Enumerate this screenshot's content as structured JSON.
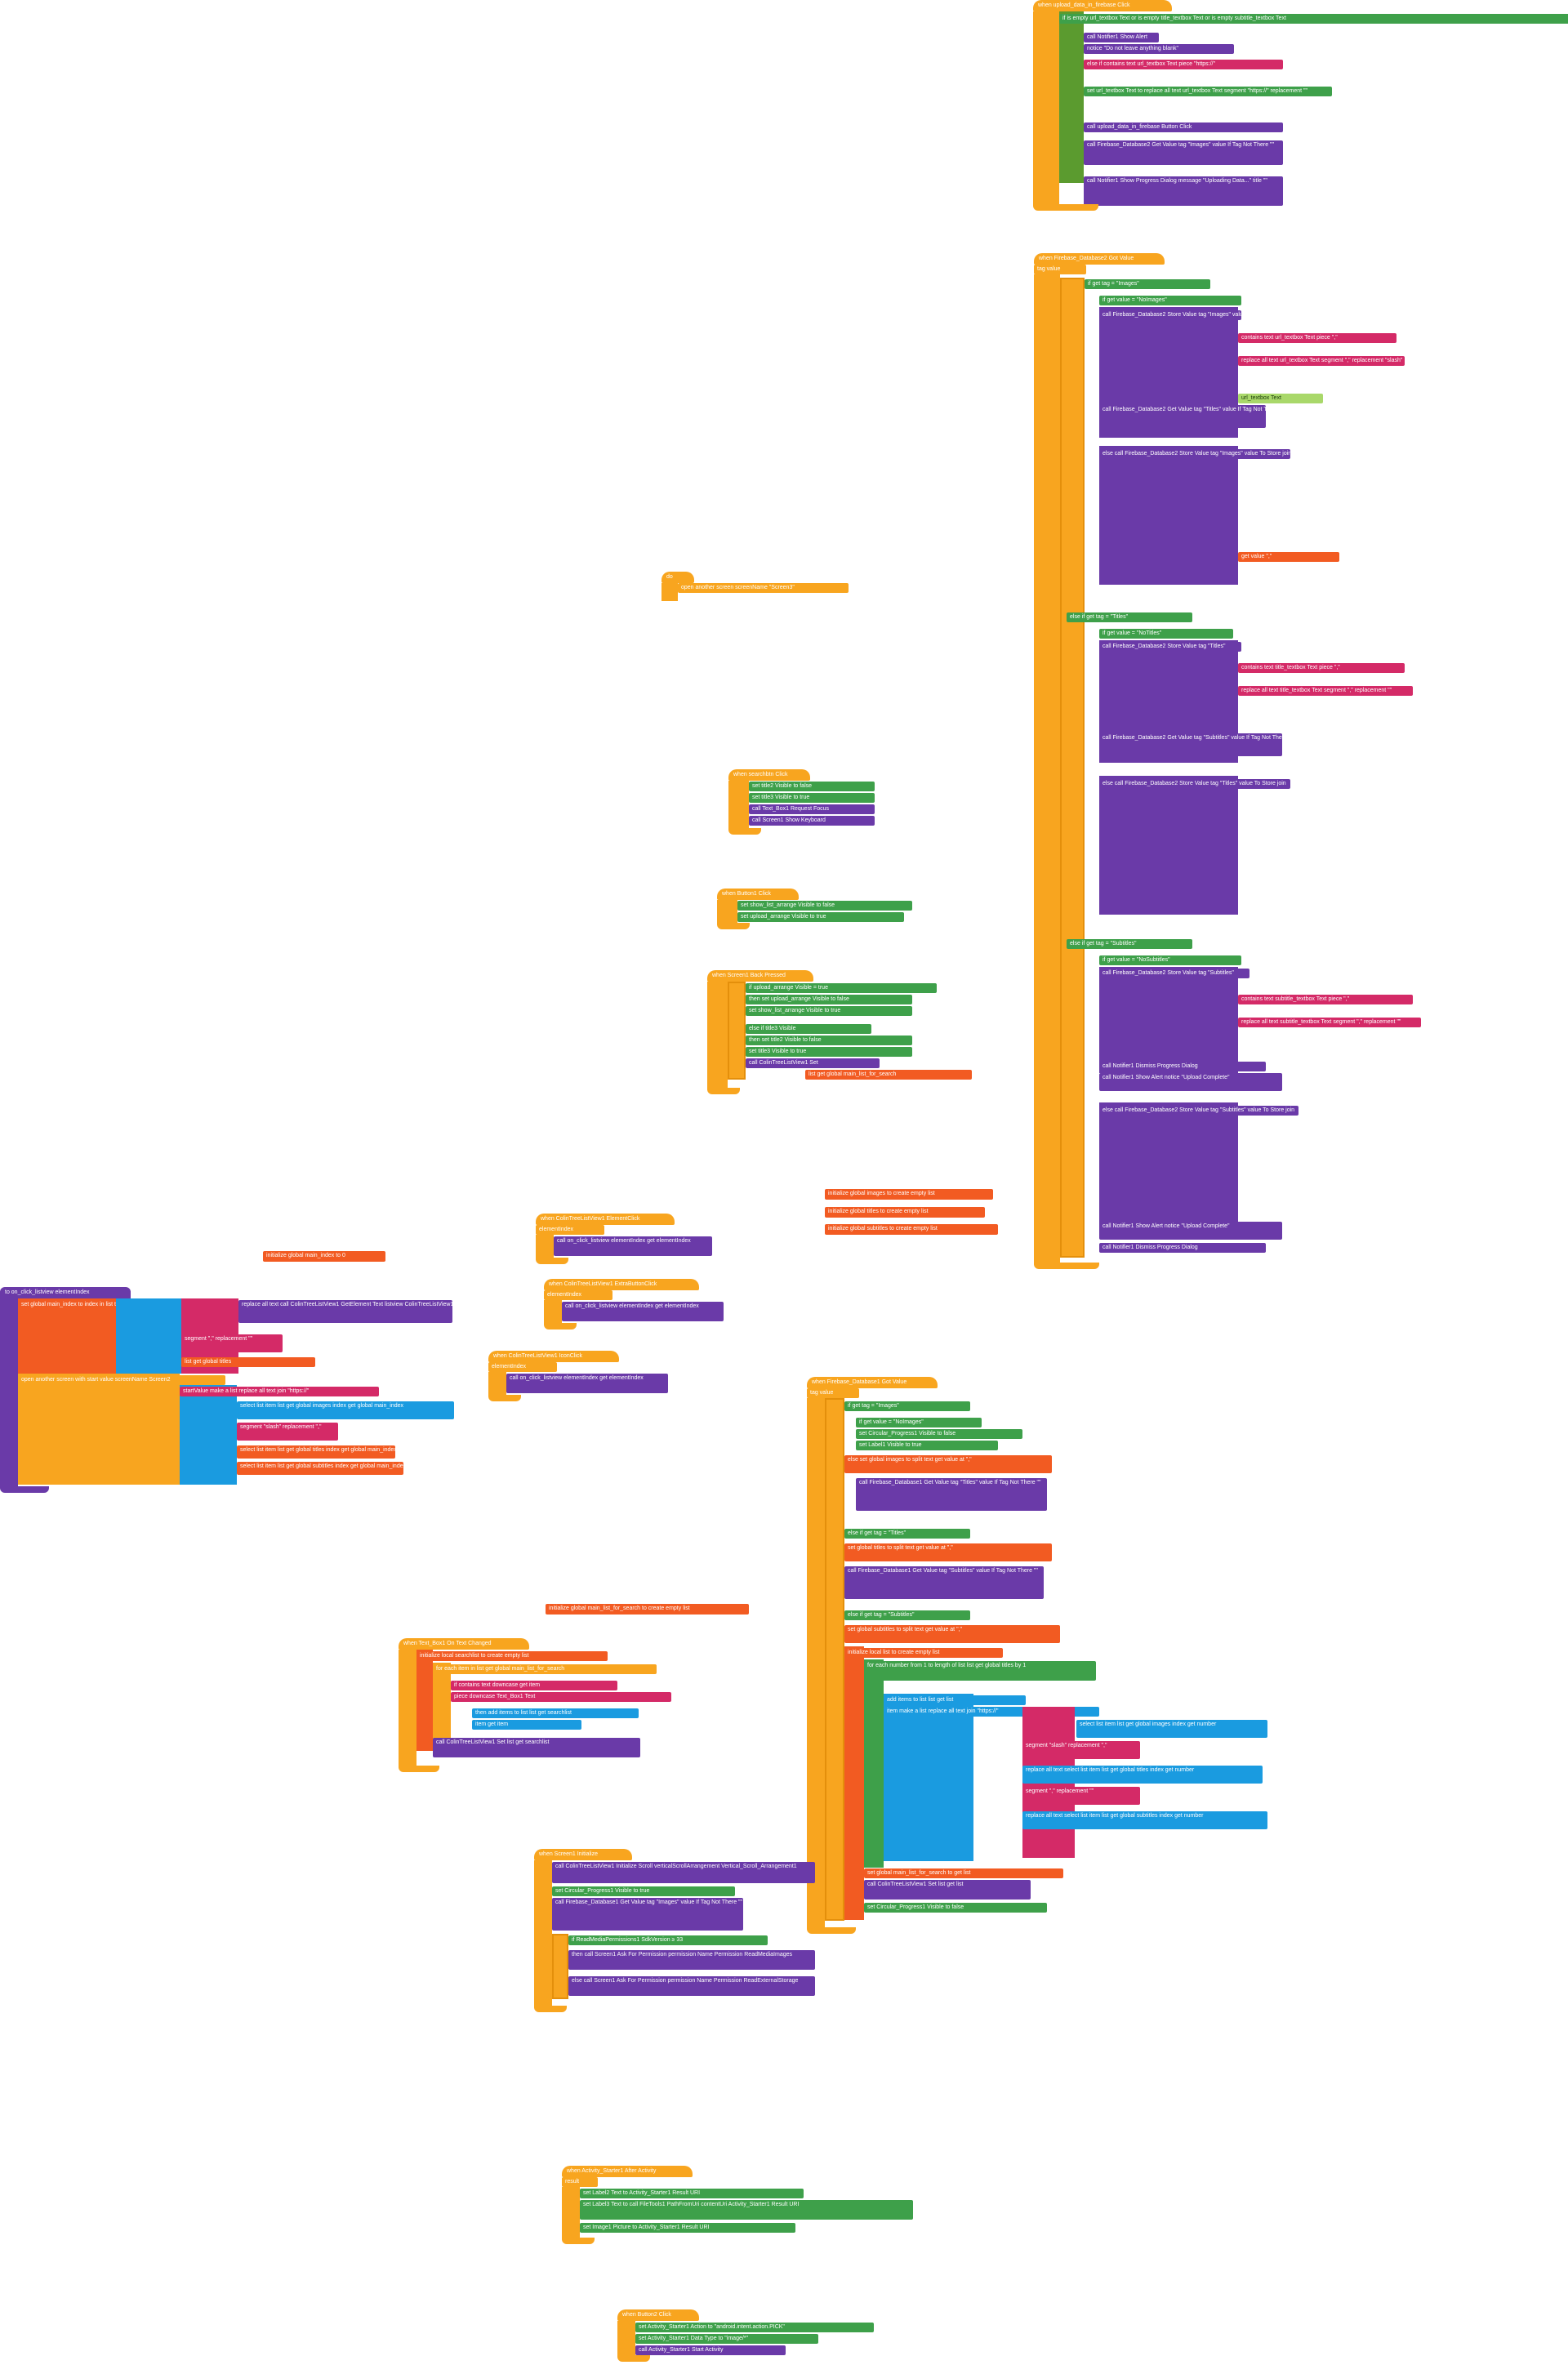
{
  "workspace": {
    "title": "",
    "bg_color": "#ffffff"
  },
  "colors": {
    "event": "#f8a51f",
    "procedure": "#6a3aa8",
    "setter": "#3ea04a",
    "text": "#d42a67",
    "variable": "#f25b22",
    "list": "#1a9be0"
  },
  "upload_event": {
    "hat": "when upload_data_in_firebase Click",
    "r1": "if is empty url_textbox Text or is empty title_textbox Text or is empty subtitle_textbox Text",
    "r2": "call Notifier1 Show Alert",
    "r3": "notice \"Do not leave anything blank\"",
    "r4": "else if contains text url_textbox Text piece \"https://\"",
    "r5": "set url_textbox Text to replace all text url_textbox Text segment \"https://\" replacement \"\"",
    "r6": "call upload_data_in_firebase Button Click",
    "r7": "call Firebase_Database2 Get Value tag \"Images\" value If Tag Not There \"\"",
    "r8": "call Notifier1 Show Progress Dialog message \"Uploading Data...\" title \"\""
  },
  "fb2_event": {
    "hat": "when Firebase_Database2 Got Value",
    "params": "tag value",
    "r1": "if get tag = \"Images\"",
    "r2": "if get value = \"NoImages\"",
    "r3": "call Firebase_Database2 Store Value tag \"Images\" value To Store",
    "r4": "contains text url_textbox Text piece \",\"",
    "r5": "replace all text url_textbox Text segment \",\" replacement \"slash\"",
    "r6": "url_textbox Text",
    "r7": "call Firebase_Database2 Get Value tag \"Titles\" value If Tag Not There \"\"",
    "r8": "else call Firebase_Database2 Store Value tag \"Images\" value To Store join",
    "r9": "get value \",\"",
    "r10": "else if get tag = \"Titles\"",
    "r11": "if get value = \"NoTitles\"",
    "r12": "call Firebase_Database2 Store Value tag \"Titles\"",
    "r13": "contains text title_textbox Text piece \",\"",
    "r14": "replace all text title_textbox Text segment \",\" replacement \"\"",
    "r15": "call Firebase_Database2 Get Value tag \"Subtitles\" value If Tag Not There \"\"",
    "r16": "else call Firebase_Database2 Store Value tag \"Titles\" value To Store join",
    "r17": "else if get tag = \"Subtitles\"",
    "r18": "if get value = \"NoSubtitles\"",
    "r19": "call Firebase_Database2 Store Value tag \"Subtitles\"",
    "r20": "contains text subtitle_textbox Text piece \",\"",
    "r21": "replace all text subtitle_textbox Text segment \",\" replacement \"\"",
    "r22": "call Notifier1 Dismiss Progress Dialog",
    "r23": "call Notifier1 Show Alert notice \"Upload Complete\"",
    "r24": "else call Firebase_Database2 Store Value tag \"Subtitles\" value To Store join",
    "r25": "call Notifier1 Show Alert notice \"Upload Complete\"",
    "r26": "call Notifier1 Dismiss Progress Dialog"
  },
  "open_screen": {
    "hat": "do",
    "r1": "open another screen screenName \"Screen3\""
  },
  "search_click": {
    "hat": "when searchbtn Click",
    "r1": "set title2 Visible to false",
    "r2": "set title3 Visible to true",
    "r3": "call Text_Box1 Request Focus",
    "r4": "call Screen1 Show Keyboard"
  },
  "button1_click": {
    "hat": "when Button1 Click",
    "r1": "set show_list_arrange Visible to false",
    "r2": "set upload_arrange Visible to true"
  },
  "back_pressed": {
    "hat": "when Screen1 Back Pressed",
    "r1": "if upload_arrange Visible = true",
    "r2": "then set upload_arrange Visible to false",
    "r3": "set show_list_arrange Visible to true",
    "r4": "else if title3 Visible",
    "r5": "then set title2 Visible to false",
    "r6": "set title3 Visible to true",
    "r7": "call ColinTreeListView1 Set",
    "r8": "list get global main_list_for_search"
  },
  "init_globals": {
    "images": "initialize global images to create empty list",
    "titles": "initialize global titles to create empty list",
    "subtitles": "initialize global subtitles to create empty list",
    "main_index": "initialize global main_index to 0",
    "main_list_for_search": "initialize global main_list_for_search to create empty list"
  },
  "element_click": {
    "hat": "when ColinTreeListView1 ElementClick",
    "r1": "elementIndex",
    "r2": "call on_click_listview elementIndex get elementIndex"
  },
  "extra_click": {
    "hat": "when ColinTreeListView1 ExtraButtonClick",
    "r1": "elementIndex",
    "r2": "call on_click_listview elementIndex get elementIndex"
  },
  "icon_click": {
    "hat": "when ColinTreeListView1 IconClick",
    "r1": "elementIndex",
    "r2": "call on_click_listview elementIndex get elementIndex"
  },
  "on_click_proc": {
    "hat": "to on_click_listview elementIndex",
    "r1": "set global main_index to index in list thing",
    "r2": "replace all text call ColinTreeListView1 GetElement Text listview ColinTreeListView1 elementIndex get elementIndex",
    "r3": "segment \",\" replacement \"\"",
    "r4": "list get global titles",
    "r5": "open another screen with start value screenName Screen2",
    "r6": "startValue make a list replace all text join \"https://\"",
    "r7": "select list item list get global images index get global main_index",
    "r8": "segment \"slash\" replacement \",\"",
    "r9": "select list item list get global titles index get global main_index",
    "r10": "select list item list get global subtitles index get global main_index"
  },
  "fb1_event": {
    "hat": "when Firebase_Database1 Got Value",
    "params": "tag value",
    "r1": "if get tag = \"Images\"",
    "r2": "if get value = \"NoImages\"",
    "r3": "set Circular_Progress1 Visible to false",
    "r4": "set Label1 Visible to true",
    "r5": "else set global images to split text get value at \",\"",
    "r6": "call Firebase_Database1 Get Value tag \"Titles\" value If Tag Not There \"\"",
    "r7": "else if get tag = \"Titles\"",
    "r8": "set global titles to split text get value at \",\"",
    "r9": "call Firebase_Database1 Get Value tag \"Subtitles\" value If Tag Not There \"\"",
    "r10": "else if get tag = \"Subtitles\"",
    "r11": "set global subtitles to split text get value at \",\"",
    "r12": "initialize local list to create empty list",
    "r13": "for each number from 1 to length of list list get global titles by 1",
    "r14": "add items to list list get list",
    "r15": "item make a list replace all text join \"https://\"",
    "r16": "select list item list get global images index get number",
    "r17": "segment \"slash\" replacement \",\"",
    "r18": "replace all text select list item list get global titles index get number",
    "r19": "segment \",\" replacement \"\"",
    "r20": "replace all text select list item list get global subtitles index get number",
    "r21": "set global main_list_for_search to get list",
    "r22": "call ColinTreeListView1 Set list get list",
    "r23": "set Circular_Progress1 Visible to false"
  },
  "text_changed": {
    "hat": "when Text_Box1 On Text Changed",
    "r1": "initialize local searchlist to create empty list",
    "r2": "for each item in list get global main_list_for_search",
    "r3": "if contains text downcase get item",
    "r4": "piece downcase Text_Box1 Text",
    "r5": "then add items to list list get searchlist",
    "r6": "item get item",
    "r7": "call ColinTreeListView1 Set list get searchlist"
  },
  "screen_init": {
    "hat": "when Screen1 Initialize",
    "r1": "call ColinTreeListView1 Initialize Scroll verticalScrollArrangement Vertical_Scroll_Arrangement1",
    "r2": "set Circular_Progress1 Visible to true",
    "r3": "call Firebase_Database1 Get Value tag \"Images\" value If Tag Not There \"\"",
    "r4": "if ReadMediaPermissions1 SdkVersion ≥ 33",
    "r5": "then call Screen1 Ask For Permission permission Name Permission ReadMediaImages",
    "r6": "else call Screen1 Ask For Permission permission Name Permission ReadExternalStorage"
  },
  "after_activity": {
    "hat": "when Activity_Starter1 After Activity",
    "r1": "result",
    "r2": "set Label2 Text to Activity_Starter1 Result URI",
    "r3": "set Label3 Text to call FileTools1 PathFromUri contentUri Activity_Starter1 Result URI",
    "r4": "set Image1 Picture to Activity_Starter1 Result URI"
  },
  "button2_click": {
    "hat": "when Button2 Click",
    "r1": "set Activity_Starter1 Action to \"android.intent.action.PICK\"",
    "r2": "set Activity_Starter1 Data Type to \"image/*\"",
    "r3": "call Activity_Starter1 Start Activity"
  }
}
